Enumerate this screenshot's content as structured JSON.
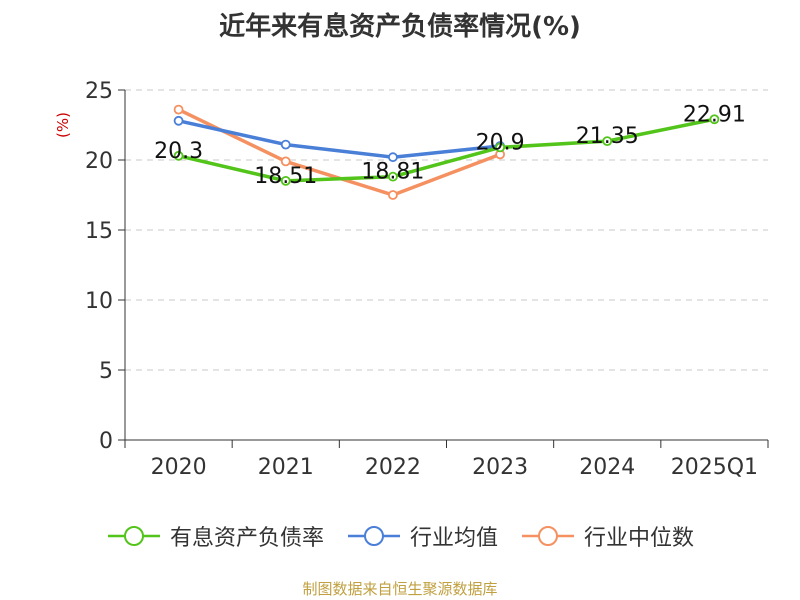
{
  "chart_data": {
    "type": "line",
    "title": "近年来有息资产负债率情况(%)",
    "ylabel": "(%)",
    "xlabel": "",
    "categories": [
      "2020",
      "2021",
      "2022",
      "2023",
      "2024",
      "2025Q1"
    ],
    "ylim": [
      0,
      25
    ],
    "yticks": [
      0,
      5,
      10,
      15,
      20,
      25
    ],
    "grid": true,
    "legend_position": "bottom",
    "series": [
      {
        "name": "有息资产负债率",
        "color": "#52c41a",
        "values": [
          20.3,
          18.51,
          18.81,
          20.9,
          21.35,
          22.91
        ],
        "labels": [
          "20.3",
          "18.51",
          "18.81",
          "20.9",
          "21.35",
          "22.91"
        ]
      },
      {
        "name": "行业均值",
        "color": "#4a7fd8",
        "values": [
          22.8,
          21.1,
          20.2,
          21.0,
          null,
          null
        ]
      },
      {
        "name": "行业中位数",
        "color": "#f59060",
        "values": [
          23.6,
          19.9,
          17.5,
          20.4,
          null,
          null
        ]
      }
    ]
  },
  "source": "制图数据来自恒生聚源数据库"
}
